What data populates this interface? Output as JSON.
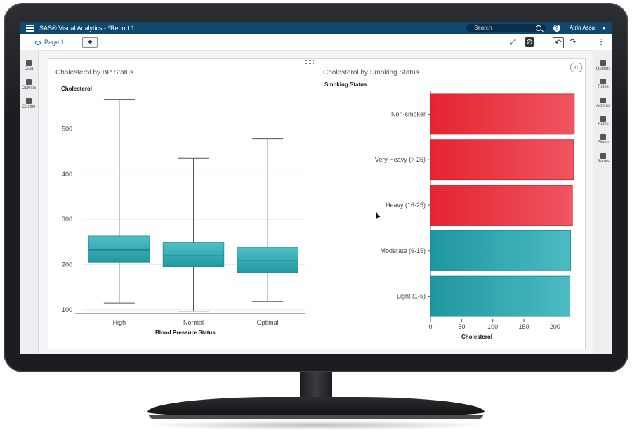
{
  "app": {
    "title": "SAS® Visual Analytics - *Report 1",
    "search_placeholder": "Search",
    "help_label": "?",
    "user_name": "Atrin Assa"
  },
  "toolbar": {
    "page_tab": "Page 1",
    "add_page": "+"
  },
  "left_rail": {
    "items": [
      {
        "label": "Data",
        "icon": "database-icon"
      },
      {
        "label": "Objects",
        "icon": "objects-icon"
      },
      {
        "label": "Outline",
        "icon": "outline-icon"
      }
    ]
  },
  "right_rail": {
    "items": [
      {
        "label": "Options",
        "icon": "options-icon"
      },
      {
        "label": "Roles",
        "icon": "roles-icon"
      },
      {
        "label": "Actions",
        "icon": "actions-icon"
      },
      {
        "label": "Rules",
        "icon": "rules-icon"
      },
      {
        "label": "Filters",
        "icon": "filter-icon"
      },
      {
        "label": "Ranks",
        "icon": "ranks-icon"
      }
    ]
  },
  "collapse_label": "‹‹",
  "colors": {
    "teal": "#27a4ad",
    "red": "#e8323c",
    "appbar": "#10486f"
  },
  "chart_data": [
    {
      "type": "box",
      "title": "Cholesterol by BP Status",
      "xlabel": "Blood Pressure Status",
      "ylabel": "Cholesterol",
      "ylim": [
        95,
        580
      ],
      "yticks": [
        100,
        200,
        300,
        400,
        500
      ],
      "categories": [
        "High",
        "Normal",
        "Optimal"
      ],
      "boxes": [
        {
          "category": "High",
          "min": 115,
          "q1": 205,
          "median": 232,
          "q3": 263,
          "max": 565
        },
        {
          "category": "Normal",
          "min": 97,
          "q1": 195,
          "median": 219,
          "q3": 248,
          "max": 435
        },
        {
          "category": "Optimal",
          "min": 118,
          "q1": 182,
          "median": 208,
          "q3": 238,
          "max": 478
        }
      ]
    },
    {
      "type": "bar",
      "orientation": "horizontal",
      "title": "Cholesterol by Smoking Status",
      "xlabel": "Cholesterol",
      "ylabel": "Smoking Status",
      "xlim": [
        0,
        230
      ],
      "xticks": [
        0,
        50,
        100,
        150,
        200
      ],
      "categories": [
        "Non-smoker",
        "Very Heavy (> 25)",
        "Heavy (16-25)",
        "Moderate (6-15)",
        "Light (1-5)"
      ],
      "values": [
        231,
        230,
        228,
        225,
        224
      ],
      "colors": [
        "#e8323c",
        "#e8323c",
        "#e8323c",
        "#27a4ad",
        "#27a4ad"
      ]
    }
  ]
}
